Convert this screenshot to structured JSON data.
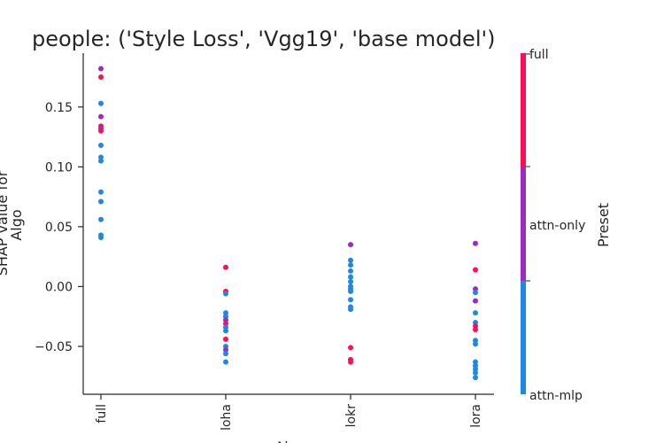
{
  "chart_data": {
    "type": "scatter",
    "title": "people: ('Style Loss', 'Vgg19', 'base model')",
    "xlabel": "Al",
    "ylabel_line1": "SHAP value for",
    "ylabel_line2": "Algo",
    "categories": [
      "full",
      "loha",
      "lokr",
      "lora"
    ],
    "ylim": [
      -0.09,
      0.195
    ],
    "yticks": [
      -0.05,
      0.0,
      0.05,
      0.1,
      0.15
    ],
    "ytick_labels": [
      "−0.05",
      "0.00",
      "0.05",
      "0.10",
      "0.15"
    ],
    "grid": false,
    "colorbar": {
      "label": "Preset",
      "ticks": [
        "full",
        "attn-only",
        "attn-mlp"
      ],
      "colors": {
        "full": "#ff0d57",
        "attn-only": "#9a2cc0",
        "attn-mlp": "#1e88e5"
      }
    },
    "points": [
      {
        "x": "full",
        "y": 0.182,
        "preset": "attn-only"
      },
      {
        "x": "full",
        "y": 0.175,
        "preset": "full"
      },
      {
        "x": "full",
        "y": 0.153,
        "preset": "attn-mlp"
      },
      {
        "x": "full",
        "y": 0.142,
        "preset": "attn-only"
      },
      {
        "x": "full",
        "y": 0.134,
        "preset": "full"
      },
      {
        "x": "full",
        "y": 0.132,
        "preset": "attn-only"
      },
      {
        "x": "full",
        "y": 0.13,
        "preset": "full"
      },
      {
        "x": "full",
        "y": 0.118,
        "preset": "attn-mlp"
      },
      {
        "x": "full",
        "y": 0.108,
        "preset": "attn-mlp"
      },
      {
        "x": "full",
        "y": 0.105,
        "preset": "attn-mlp"
      },
      {
        "x": "full",
        "y": 0.079,
        "preset": "attn-mlp"
      },
      {
        "x": "full",
        "y": 0.071,
        "preset": "attn-mlp"
      },
      {
        "x": "full",
        "y": 0.056,
        "preset": "attn-mlp"
      },
      {
        "x": "full",
        "y": 0.043,
        "preset": "attn-mlp"
      },
      {
        "x": "full",
        "y": 0.041,
        "preset": "attn-mlp"
      },
      {
        "x": "loha",
        "y": 0.016,
        "preset": "full"
      },
      {
        "x": "loha",
        "y": -0.004,
        "preset": "full"
      },
      {
        "x": "loha",
        "y": -0.006,
        "preset": "attn-mlp"
      },
      {
        "x": "loha",
        "y": -0.022,
        "preset": "attn-mlp"
      },
      {
        "x": "loha",
        "y": -0.025,
        "preset": "attn-mlp"
      },
      {
        "x": "loha",
        "y": -0.028,
        "preset": "attn-only"
      },
      {
        "x": "loha",
        "y": -0.031,
        "preset": "full"
      },
      {
        "x": "loha",
        "y": -0.034,
        "preset": "attn-mlp"
      },
      {
        "x": "loha",
        "y": -0.037,
        "preset": "attn-mlp"
      },
      {
        "x": "loha",
        "y": -0.044,
        "preset": "full"
      },
      {
        "x": "loha",
        "y": -0.05,
        "preset": "attn-mlp"
      },
      {
        "x": "loha",
        "y": -0.053,
        "preset": "attn-only"
      },
      {
        "x": "loha",
        "y": -0.056,
        "preset": "attn-mlp"
      },
      {
        "x": "loha",
        "y": -0.063,
        "preset": "attn-mlp"
      },
      {
        "x": "lokr",
        "y": 0.035,
        "preset": "attn-only"
      },
      {
        "x": "lokr",
        "y": 0.022,
        "preset": "attn-mlp"
      },
      {
        "x": "lokr",
        "y": 0.018,
        "preset": "attn-mlp"
      },
      {
        "x": "lokr",
        "y": 0.013,
        "preset": "attn-mlp"
      },
      {
        "x": "lokr",
        "y": 0.008,
        "preset": "attn-mlp"
      },
      {
        "x": "lokr",
        "y": 0.004,
        "preset": "attn-mlp"
      },
      {
        "x": "lokr",
        "y": 0.0,
        "preset": "attn-mlp"
      },
      {
        "x": "lokr",
        "y": -0.002,
        "preset": "attn-mlp"
      },
      {
        "x": "lokr",
        "y": -0.004,
        "preset": "attn-mlp"
      },
      {
        "x": "lokr",
        "y": -0.011,
        "preset": "attn-mlp"
      },
      {
        "x": "lokr",
        "y": -0.017,
        "preset": "attn-mlp"
      },
      {
        "x": "lokr",
        "y": -0.019,
        "preset": "attn-mlp"
      },
      {
        "x": "lokr",
        "y": -0.051,
        "preset": "full"
      },
      {
        "x": "lokr",
        "y": -0.061,
        "preset": "full"
      },
      {
        "x": "lokr",
        "y": -0.063,
        "preset": "full"
      },
      {
        "x": "lora",
        "y": 0.036,
        "preset": "attn-only"
      },
      {
        "x": "lora",
        "y": 0.014,
        "preset": "full"
      },
      {
        "x": "lora",
        "y": -0.002,
        "preset": "attn-only"
      },
      {
        "x": "lora",
        "y": -0.005,
        "preset": "attn-mlp"
      },
      {
        "x": "lora",
        "y": -0.012,
        "preset": "attn-only"
      },
      {
        "x": "lora",
        "y": -0.022,
        "preset": "attn-mlp"
      },
      {
        "x": "lora",
        "y": -0.03,
        "preset": "attn-mlp"
      },
      {
        "x": "lora",
        "y": -0.033,
        "preset": "full"
      },
      {
        "x": "lora",
        "y": -0.036,
        "preset": "full"
      },
      {
        "x": "lora",
        "y": -0.045,
        "preset": "attn-mlp"
      },
      {
        "x": "lora",
        "y": -0.048,
        "preset": "attn-mlp"
      },
      {
        "x": "lora",
        "y": -0.063,
        "preset": "attn-mlp"
      },
      {
        "x": "lora",
        "y": -0.066,
        "preset": "attn-mlp"
      },
      {
        "x": "lora",
        "y": -0.069,
        "preset": "attn-mlp"
      },
      {
        "x": "lora",
        "y": -0.072,
        "preset": "attn-mlp"
      },
      {
        "x": "lora",
        "y": -0.076,
        "preset": "attn-mlp"
      }
    ]
  }
}
